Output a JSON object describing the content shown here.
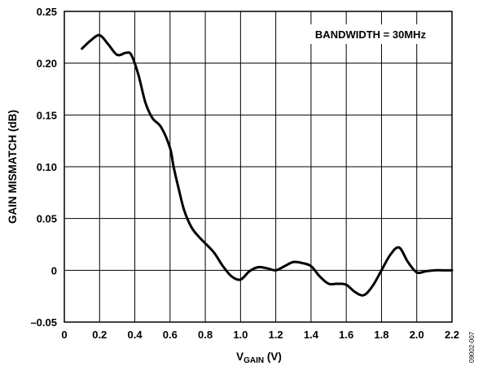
{
  "chart_data": {
    "type": "line",
    "title": "",
    "xlabel": {
      "main": "V",
      "sub": "GAIN",
      "unit": " (V)"
    },
    "ylabel": "GAIN MISMATCH (dB)",
    "xlim": [
      0,
      2.2
    ],
    "ylim": [
      -0.05,
      0.25
    ],
    "x_ticks": [
      0,
      0.2,
      0.4,
      0.6,
      0.8,
      1.0,
      1.2,
      1.4,
      1.6,
      1.8,
      2.0,
      2.2
    ],
    "x_tick_labels": [
      "0",
      "0.2",
      "0.4",
      "0.6",
      "0.8",
      "1.0",
      "1.2",
      "1.4",
      "1.6",
      "1.8",
      "2.0",
      "2.2"
    ],
    "y_ticks": [
      -0.05,
      0,
      0.05,
      0.1,
      0.15,
      0.2,
      0.25
    ],
    "y_tick_labels": [
      "–0.05",
      "0",
      "0.05",
      "0.10",
      "0.15",
      "0.20",
      "0.25"
    ],
    "grid": true,
    "annotation": "BANDWIDTH = 30MHz",
    "series": [
      {
        "x": [
          0.1,
          0.15,
          0.2,
          0.25,
          0.3,
          0.35,
          0.38,
          0.42,
          0.46,
          0.5,
          0.55,
          0.6,
          0.62,
          0.65,
          0.68,
          0.72,
          0.76,
          0.8,
          0.85,
          0.9,
          0.95,
          1.0,
          1.05,
          1.1,
          1.15,
          1.2,
          1.25,
          1.3,
          1.35,
          1.4,
          1.45,
          1.5,
          1.55,
          1.6,
          1.65,
          1.7,
          1.75,
          1.8,
          1.85,
          1.9,
          1.95,
          2.0,
          2.05,
          2.1,
          2.15,
          2.2
        ],
        "y": [
          0.214,
          0.222,
          0.227,
          0.218,
          0.208,
          0.21,
          0.208,
          0.189,
          0.162,
          0.147,
          0.138,
          0.118,
          0.1,
          0.078,
          0.058,
          0.042,
          0.033,
          0.026,
          0.017,
          0.004,
          -0.006,
          -0.009,
          -0.001,
          0.003,
          0.002,
          0.0,
          0.004,
          0.008,
          0.007,
          0.004,
          -0.006,
          -0.013,
          -0.013,
          -0.014,
          -0.021,
          -0.024,
          -0.015,
          0.0,
          0.015,
          0.022,
          0.008,
          -0.002,
          -0.001,
          0.0,
          0.0,
          0.0
        ]
      }
    ]
  },
  "figure_id": "09002-007",
  "colors": {
    "line": "#000000",
    "grid": "#000000",
    "background": "#ffffff"
  }
}
